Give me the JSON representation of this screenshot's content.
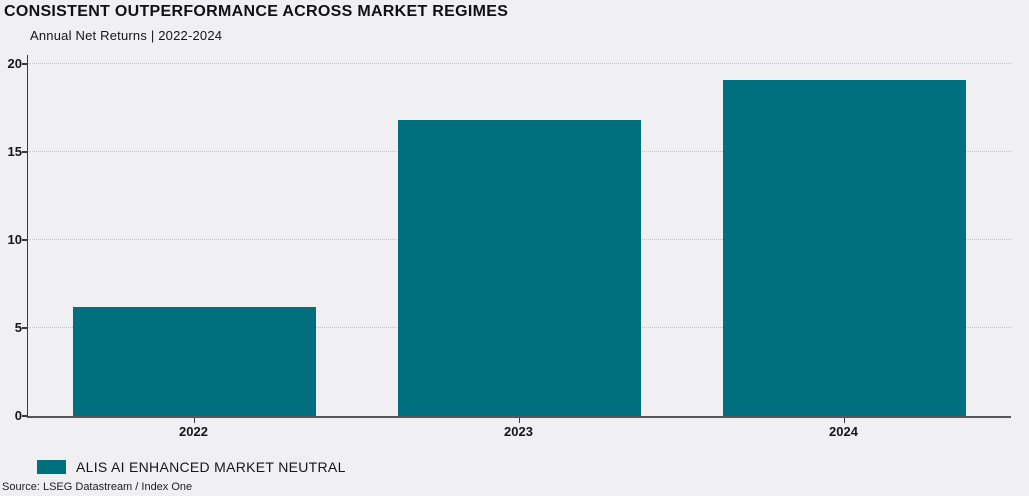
{
  "header": {
    "title": "CONSISTENT OUTPERFORMANCE ACROSS MARKET REGIMES",
    "subtitle": "Annual Net Returns | 2022-2024"
  },
  "legend": {
    "label": "ALIS AI ENHANCED MARKET NEUTRAL"
  },
  "footer": {
    "source": "Source: LSEG Datastream / Index One"
  },
  "colors": {
    "bar": "#006f7e",
    "background": "#f0eff1",
    "grid": "#c4c3c7",
    "axis": "#3a3a3e",
    "text": "#161616"
  },
  "chart_data": {
    "type": "bar",
    "title": "CONSISTENT OUTPERFORMANCE ACROSS MARKET REGIMES",
    "subtitle": "Annual Net Returns | 2022-2024",
    "categories": [
      "2022",
      "2023",
      "2024"
    ],
    "series": [
      {
        "name": "ALIS AI ENHANCED MARKET NEUTRAL",
        "color": "#006f7e",
        "values": [
          6.2,
          16.8,
          19.1
        ]
      }
    ],
    "xlabel": "",
    "ylabel": "",
    "ylim": [
      0,
      20
    ],
    "yticks": [
      0,
      5,
      10,
      15,
      20
    ],
    "grid": "horizontal-dotted",
    "legend_position": "bottom-left",
    "source": "Source: LSEG Datastream / Index One"
  }
}
